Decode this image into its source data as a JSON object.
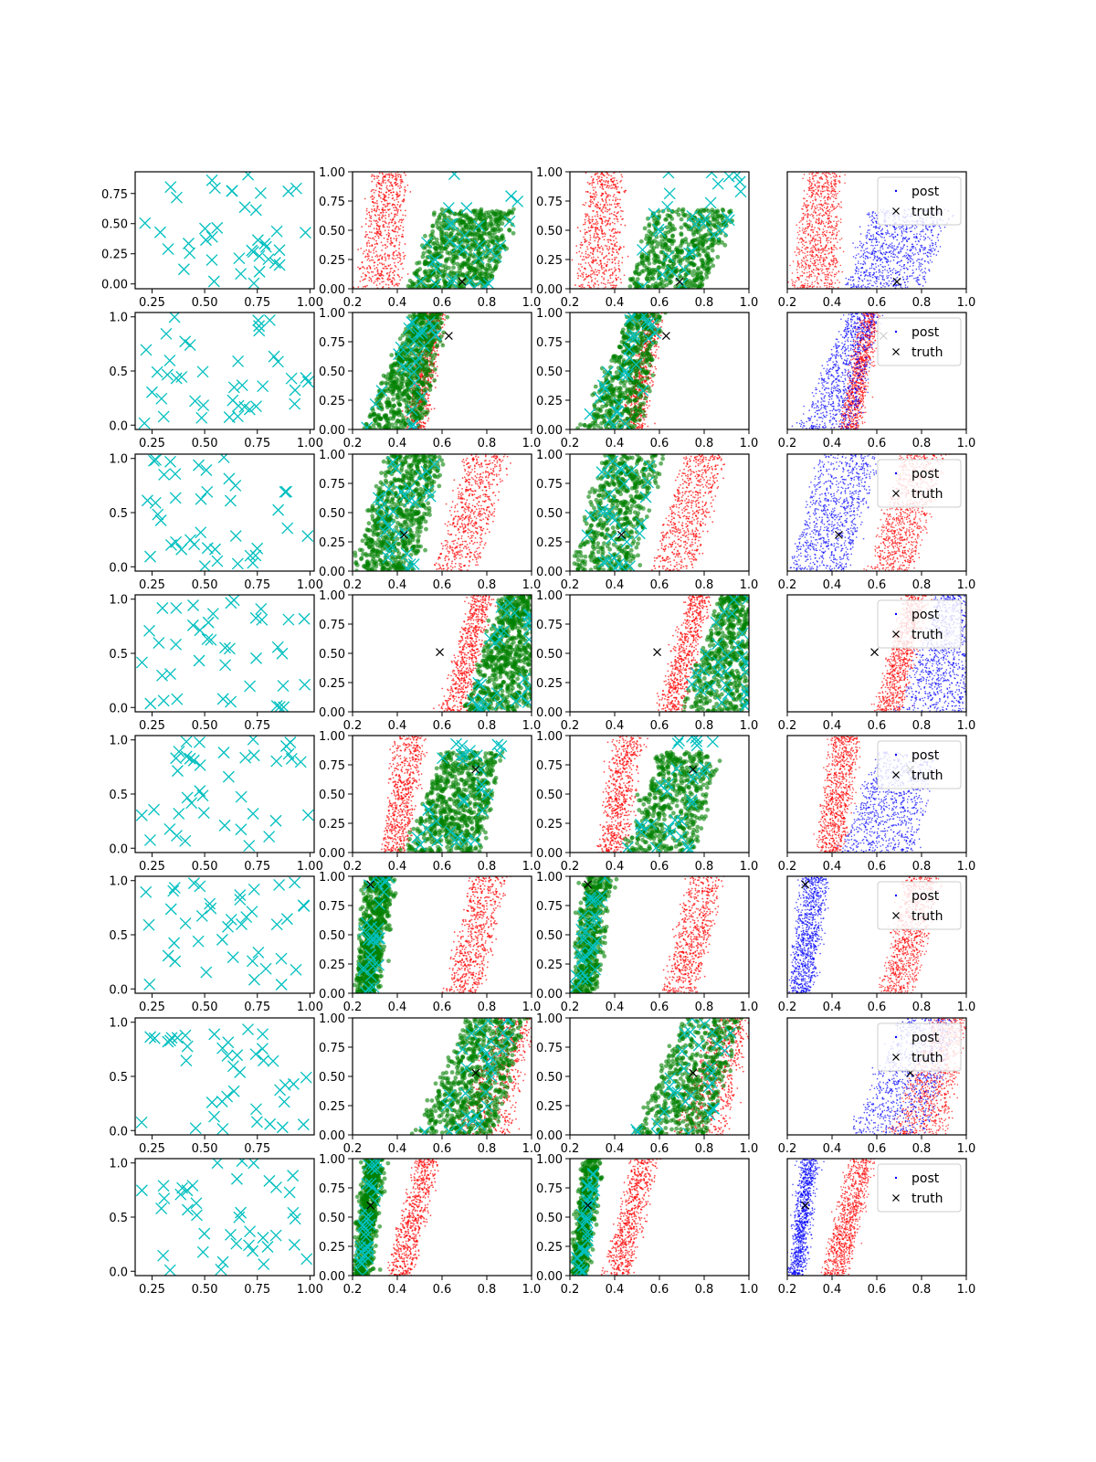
{
  "chart_data": {
    "type": "scatter",
    "layout": "8 rows x 4 columns of scatter subplots",
    "colors": {
      "design_points": "#00bfbf",
      "samples": "#ff0000",
      "accepted": "#008000",
      "post": "#0000ff",
      "truth": "#000000"
    },
    "legend": {
      "entries": [
        "post",
        "truth"
      ],
      "position": "upper-right"
    },
    "first_column_xticks": [
      [
        "0.25",
        "0.50",
        "0.75",
        "1.00"
      ],
      [
        "0.25",
        "0.50",
        "0.75",
        "1.00"
      ],
      [
        "0.25",
        "0.50",
        "0.75",
        "1.00"
      ],
      [
        "0.25",
        "0.50",
        "0.75"
      ],
      [
        "0.25",
        "0.50",
        "0.75",
        "1.00"
      ],
      [
        "0.25",
        "0.50",
        "0.75",
        "1.00"
      ],
      [
        "0.25",
        "0.50",
        "0.75"
      ],
      [
        "0.25",
        "0.50",
        "0.75",
        "1.00"
      ]
    ],
    "first_column_yticks": [
      [
        "0.00",
        "0.25",
        "0.50",
        "0.75"
      ],
      [
        "0.0",
        "0.5",
        "1.0"
      ],
      [
        "0.0",
        "0.5",
        "1.0"
      ],
      [
        "0.0",
        "0.5",
        "1.0"
      ],
      [
        "0.0",
        "0.5",
        "1.0"
      ],
      [
        "0.0",
        "0.5",
        "1.0"
      ],
      [
        "0.0",
        "0.5",
        "1.0"
      ],
      [
        "0.0",
        "0.5",
        "1.0"
      ]
    ],
    "other_xticks": [
      "0.2",
      "0.4",
      "0.6",
      "0.8",
      "1.0"
    ],
    "other_yticks": [
      "0.00",
      "0.25",
      "0.50",
      "0.75",
      "1.00"
    ],
    "xlim": [
      0.2,
      1.0
    ],
    "ylim": [
      0.0,
      1.0
    ],
    "rows": [
      {
        "truth": [
          0.69,
          0.06
        ],
        "red_band": [
          0.22,
          0.42,
          0.3,
          0.43
        ],
        "blue_band": [
          0.46,
          0.8,
          0.64,
          1.0
        ],
        "red_extent": [
          0.0,
          1.0
        ],
        "blue_extent": [
          0.0,
          0.68
        ]
      },
      {
        "truth": [
          0.63,
          0.8
        ],
        "red_band": [
          0.44,
          0.52,
          0.54,
          0.6
        ],
        "blue_band": [
          0.25,
          0.5,
          0.48,
          0.6
        ],
        "red_extent": [
          0.0,
          1.0
        ],
        "blue_extent": [
          0.0,
          1.0
        ]
      },
      {
        "truth": [
          0.43,
          0.31
        ],
        "red_band": [
          0.57,
          0.75,
          0.72,
          0.9
        ],
        "blue_band": [
          0.21,
          0.47,
          0.36,
          0.6
        ],
        "red_extent": [
          0.0,
          1.0
        ],
        "blue_extent": [
          0.0,
          1.0
        ]
      },
      {
        "truth": [
          0.59,
          0.51
        ],
        "red_band": [
          0.6,
          0.7,
          0.74,
          0.82
        ],
        "blue_band": [
          0.7,
          1.0,
          0.88,
          1.0
        ],
        "red_extent": [
          0.0,
          1.0
        ],
        "blue_extent": [
          0.0,
          1.0
        ]
      },
      {
        "truth": [
          0.75,
          0.71
        ],
        "red_band": [
          0.34,
          0.44,
          0.4,
          0.52
        ],
        "blue_band": [
          0.44,
          0.76,
          0.64,
          0.88
        ],
        "red_extent": [
          0.0,
          1.0
        ],
        "blue_extent": [
          0.0,
          0.86
        ]
      },
      {
        "truth": [
          0.28,
          0.93
        ],
        "red_band": [
          0.62,
          0.76,
          0.74,
          0.88
        ],
        "blue_band": [
          0.22,
          0.3,
          0.27,
          0.38
        ],
        "red_extent": [
          0.0,
          1.0
        ],
        "blue_extent": [
          0.0,
          1.0
        ]
      },
      {
        "truth": [
          0.75,
          0.53
        ],
        "red_band": [
          0.66,
          0.9,
          0.86,
          1.0
        ],
        "blue_band": [
          0.48,
          0.82,
          0.72,
          0.96
        ],
        "red_extent": [
          0.0,
          1.0
        ],
        "blue_extent": [
          0.0,
          1.0
        ]
      },
      {
        "truth": [
          0.28,
          0.6
        ],
        "red_band": [
          0.36,
          0.46,
          0.49,
          0.58
        ],
        "blue_band": [
          0.22,
          0.26,
          0.27,
          0.33
        ],
        "red_extent": [
          0.0,
          1.0
        ],
        "blue_extent": [
          0.0,
          1.0
        ]
      }
    ]
  }
}
